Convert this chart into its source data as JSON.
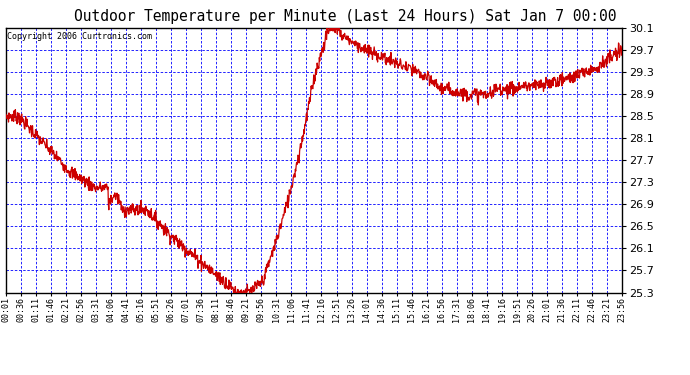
{
  "title": "Outdoor Temperature per Minute (Last 24 Hours) Sat Jan 7 00:00",
  "copyright": "Copyright 2006 Curtronics.com",
  "ymin": 25.3,
  "ymax": 30.1,
  "ytick_step": 0.4,
  "line_color": "#cc0000",
  "grid_color": "#0000ff",
  "xtick_labels": [
    "00:01",
    "00:36",
    "01:11",
    "01:46",
    "02:21",
    "02:56",
    "03:31",
    "04:06",
    "04:41",
    "05:16",
    "05:51",
    "06:26",
    "07:01",
    "07:36",
    "08:11",
    "08:46",
    "09:21",
    "09:56",
    "10:31",
    "11:06",
    "11:41",
    "12:16",
    "12:51",
    "13:26",
    "14:01",
    "14:36",
    "15:11",
    "15:46",
    "16:21",
    "16:56",
    "17:31",
    "18:06",
    "18:41",
    "19:16",
    "19:51",
    "20:26",
    "21:01",
    "21:36",
    "22:11",
    "22:46",
    "23:21",
    "23:56"
  ]
}
